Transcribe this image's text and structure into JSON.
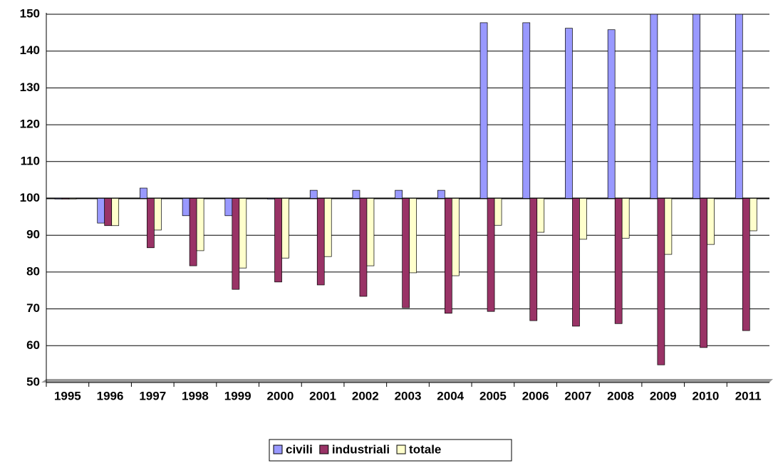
{
  "chart_data": {
    "type": "bar",
    "categories": [
      "1995",
      "1996",
      "1997",
      "1998",
      "1999",
      "2000",
      "2001",
      "2002",
      "2003",
      "2004",
      "2005",
      "2006",
      "2007",
      "2008",
      "2009",
      "2010",
      "2011"
    ],
    "series": [
      {
        "name": "civili",
        "color": "#9999ff",
        "values": [
          100,
          93.3,
          102.8,
          95.3,
          95.3,
          99.8,
          102.2,
          102.2,
          102.2,
          102.2,
          147.7,
          147.7,
          146.2,
          145.8,
          150,
          150,
          150
        ]
      },
      {
        "name": "industriali",
        "color": "#993366",
        "values": [
          100,
          92.6,
          86.6,
          81.7,
          75.3,
          77.3,
          76.5,
          73.4,
          70.3,
          68.8,
          69.3,
          66.8,
          65.3,
          66,
          54.8,
          59.5,
          64.1
        ]
      },
      {
        "name": "totale",
        "color": "#ffffcc",
        "values": [
          100,
          92.6,
          91.4,
          85.8,
          81.1,
          83.8,
          84.2,
          81.7,
          79.8,
          79,
          92.7,
          90.8,
          88.9,
          89.2,
          84.8,
          87.5,
          91.2
        ]
      }
    ],
    "x_axis_crosses": 100,
    "ylim": [
      50,
      150
    ],
    "yticks": [
      50,
      60,
      70,
      80,
      90,
      100,
      110,
      120,
      130,
      140,
      150
    ],
    "grid": true,
    "legend": "bottom"
  }
}
